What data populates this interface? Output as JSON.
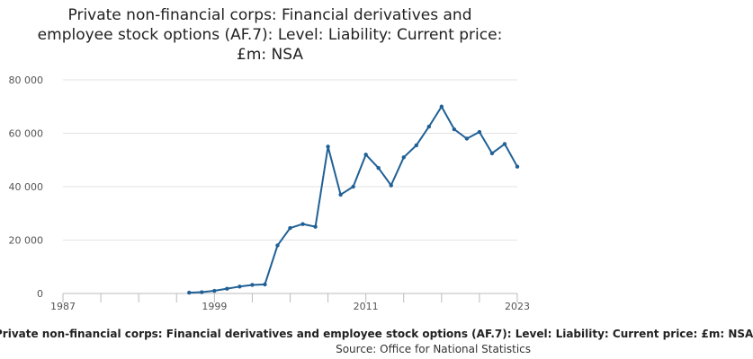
{
  "chart_data": {
    "type": "line",
    "title": "Private non-financial corps: Financial derivatives and employee stock options (AF.7): Level: Liability: Current price: £m: NSA",
    "x_tick_labels": [
      "1987",
      "1999",
      "2011",
      "2023"
    ],
    "x_ticks": [
      1987,
      1999,
      2011,
      2023
    ],
    "y_tick_labels": [
      "0",
      "20 000",
      "40 000",
      "60 000",
      "80 000"
    ],
    "y_ticks": [
      0,
      20000,
      40000,
      60000,
      80000
    ],
    "xlim": [
      1987,
      2023
    ],
    "ylim": [
      0,
      80000
    ],
    "grid": "horizontal",
    "x": [
      1997,
      1998,
      1999,
      2000,
      2001,
      2002,
      2003,
      2004,
      2005,
      2006,
      2007,
      2008,
      2009,
      2010,
      2011,
      2012,
      2013,
      2014,
      2015,
      2016,
      2017,
      2018,
      2019,
      2020,
      2021,
      2022,
      2023
    ],
    "values": [
      300,
      500,
      1000,
      1800,
      2600,
      3200,
      3400,
      18000,
      24500,
      26000,
      25000,
      55000,
      37000,
      40000,
      52000,
      47000,
      40500,
      51000,
      55500,
      62500,
      70000,
      61500,
      58000,
      60500,
      52500,
      56000,
      47500
    ],
    "line_color": "#206095"
  },
  "caption": "Private non-financial corps: Financial derivatives and employee stock options (AF.7): Level: Liability: Current price: £m: NSA",
  "source_text": "Source: Office for National Statistics"
}
